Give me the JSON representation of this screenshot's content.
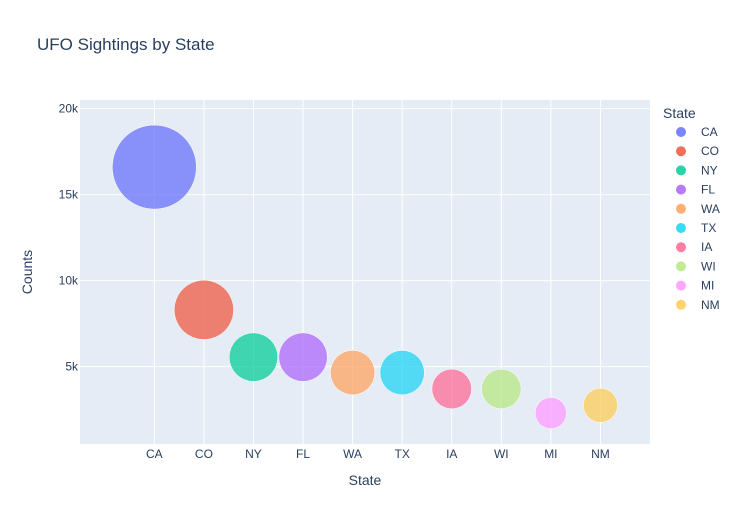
{
  "chart_data": {
    "type": "scatter",
    "title": "UFO Sightings by State",
    "xlabel": "State",
    "ylabel": "Counts",
    "categories": [
      "CA",
      "CO",
      "NY",
      "FL",
      "WA",
      "TX",
      "IA",
      "WI",
      "MI",
      "NM"
    ],
    "values": [
      16600,
      8300,
      5550,
      5550,
      4650,
      4650,
      3700,
      3700,
      2300,
      2750
    ],
    "ylim": [
      500,
      20500
    ],
    "y_ticks": [
      5000,
      10000,
      15000,
      20000
    ],
    "y_tick_labels": [
      "5k",
      "10k",
      "15k",
      "20k"
    ],
    "colors": [
      "#636efa",
      "#EF553B",
      "#00cc96",
      "#ab63fa",
      "#FFA15A",
      "#19d3f3",
      "#FF6692",
      "#B6E880",
      "#FF97FF",
      "#FECB52"
    ],
    "marker_size": "proportional to count",
    "grid": true,
    "legend": {
      "title": "State",
      "placement": "right",
      "entries": [
        "CA",
        "CO",
        "NY",
        "FL",
        "WA",
        "TX",
        "IA",
        "WI",
        "MI",
        "NM"
      ]
    },
    "plot_background": "#e5ecf6"
  }
}
